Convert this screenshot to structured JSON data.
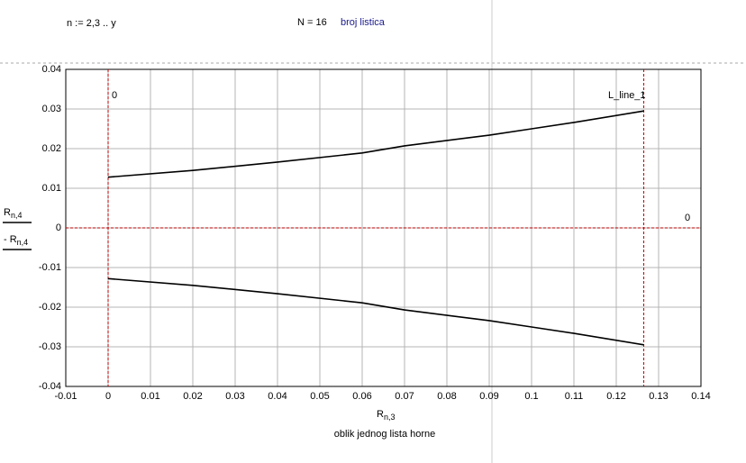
{
  "header": {
    "range_def": "n := 2,3 .. y",
    "n_def": "N = 16",
    "n_comment": "broj listica"
  },
  "chart_data": {
    "type": "line",
    "caption": "oblik jednog lista horne",
    "xlabel": {
      "base": "R",
      "sub": "n,3"
    },
    "x": [
      0,
      0.02,
      0.04,
      0.06,
      0.07,
      0.09,
      0.1,
      0.11,
      0.1265
    ],
    "series": [
      {
        "name": "R",
        "sub": "n,4",
        "color": "#000000",
        "values": [
          0.0128,
          0.0145,
          0.0166,
          0.0189,
          0.0207,
          0.0234,
          0.025,
          0.0266,
          0.0295
        ]
      },
      {
        "name": "- R",
        "sub": "n,4",
        "color": "#000000",
        "values": [
          -0.0128,
          -0.0145,
          -0.0166,
          -0.0189,
          -0.0207,
          -0.0234,
          -0.025,
          -0.0266,
          -0.0295
        ]
      }
    ],
    "xlim": [
      -0.01,
      0.14
    ],
    "xticks": [
      -0.01,
      0,
      0.01,
      0.02,
      0.03,
      0.04,
      0.05,
      0.06,
      0.07,
      0.08,
      0.09,
      0.1,
      0.11,
      0.12,
      0.13,
      0.14
    ],
    "ylim": [
      -0.04,
      0.04
    ],
    "yticks": [
      -0.04,
      -0.03,
      -0.02,
      -0.01,
      0,
      0.01,
      0.02,
      0.03,
      0.04
    ],
    "grid": true,
    "x_markers": [
      0,
      {
        "value": 0.1265,
        "label": "L_line_1"
      }
    ],
    "y_markers": [
      0
    ],
    "marker_color": "#c00000"
  }
}
